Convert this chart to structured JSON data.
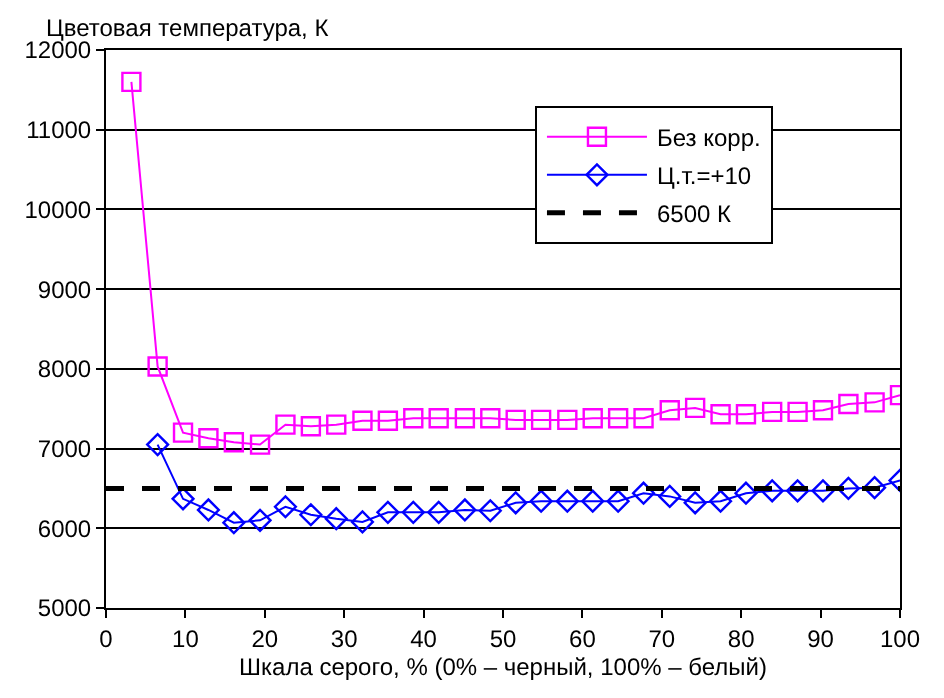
{
  "chart_data": {
    "type": "line",
    "ylabel": "Цветовая температура, К",
    "xlabel": "Шкала серого, % (0% – черный, 100% – белый)",
    "x": [
      3.2,
      6.5,
      9.7,
      12.9,
      16.1,
      19.4,
      22.6,
      25.8,
      29.0,
      32.3,
      35.5,
      38.7,
      41.9,
      45.2,
      48.4,
      51.6,
      54.8,
      58.1,
      61.3,
      64.5,
      67.7,
      71.0,
      74.2,
      77.4,
      80.6,
      83.9,
      87.1,
      90.3,
      93.5,
      96.8,
      100
    ],
    "series": [
      {
        "name": "Без корр.",
        "color": "#ff00ff",
        "marker": "square",
        "values": [
          11600,
          8030,
          7200,
          7130,
          7080,
          7050,
          7300,
          7280,
          7300,
          7350,
          7350,
          7380,
          7380,
          7380,
          7380,
          7360,
          7360,
          7360,
          7380,
          7380,
          7380,
          7480,
          7510,
          7430,
          7430,
          7460,
          7460,
          7480,
          7560,
          7580,
          7670
        ]
      },
      {
        "name": "Ц.т.=+10",
        "color": "#0000ff",
        "marker": "diamond",
        "values": [
          null,
          7050,
          6370,
          6230,
          6070,
          6100,
          6270,
          6170,
          6120,
          6080,
          6200,
          6200,
          6200,
          6230,
          6220,
          6320,
          6340,
          6340,
          6340,
          6340,
          6440,
          6400,
          6320,
          6340,
          6440,
          6470,
          6470,
          6470,
          6500,
          6510,
          6600
        ]
      }
    ],
    "ref_lines": [
      {
        "axis": "y",
        "value": 6500,
        "label": "6500 К",
        "color": "#000000",
        "line_style": "dashed"
      }
    ],
    "xlim": [
      0,
      100
    ],
    "xticks": [
      0,
      10,
      20,
      30,
      40,
      50,
      60,
      70,
      80,
      90,
      100
    ],
    "ylim": [
      5000,
      12000
    ],
    "yticks": [
      5000,
      6000,
      7000,
      8000,
      9000,
      10000,
      11000,
      12000
    ],
    "grid": "y",
    "legend": "top right"
  }
}
